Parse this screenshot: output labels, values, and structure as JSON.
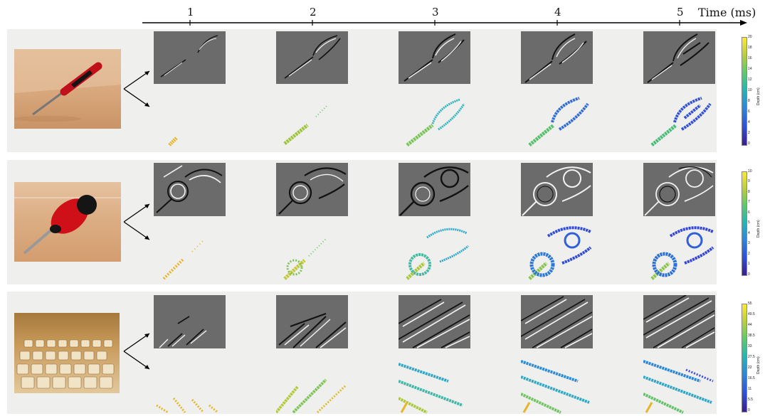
{
  "timeline": {
    "label": "Time (ms)",
    "ticks": [
      "1",
      "2",
      "3",
      "4",
      "5"
    ]
  },
  "rows": [
    {
      "object": "screwdriver-side",
      "colorbar": {
        "title": "Depth (cm)",
        "ticks": [
          "20",
          "18",
          "16",
          "14",
          "12",
          "10",
          "8",
          "6",
          "4",
          "2",
          "0"
        ]
      }
    },
    {
      "object": "screwdriver-angled",
      "colorbar": {
        "title": "Depth (cm)",
        "ticks": [
          "10",
          "9",
          "8",
          "7",
          "6",
          "5",
          "4",
          "3",
          "2",
          "1",
          "0"
        ]
      }
    },
    {
      "object": "keyboard",
      "colorbar": {
        "title": "Depth (cm)",
        "ticks": [
          "55",
          "49.5",
          "44",
          "38.5",
          "33",
          "27.5",
          "22",
          "16.5",
          "11",
          "5.5",
          "0"
        ]
      }
    }
  ],
  "colors": {
    "panel_bg": "#efefed",
    "event_frame_bg": "#6b6b6b",
    "colormap_low": "#3b1d8f",
    "colormap_high": "#f9e93a"
  }
}
